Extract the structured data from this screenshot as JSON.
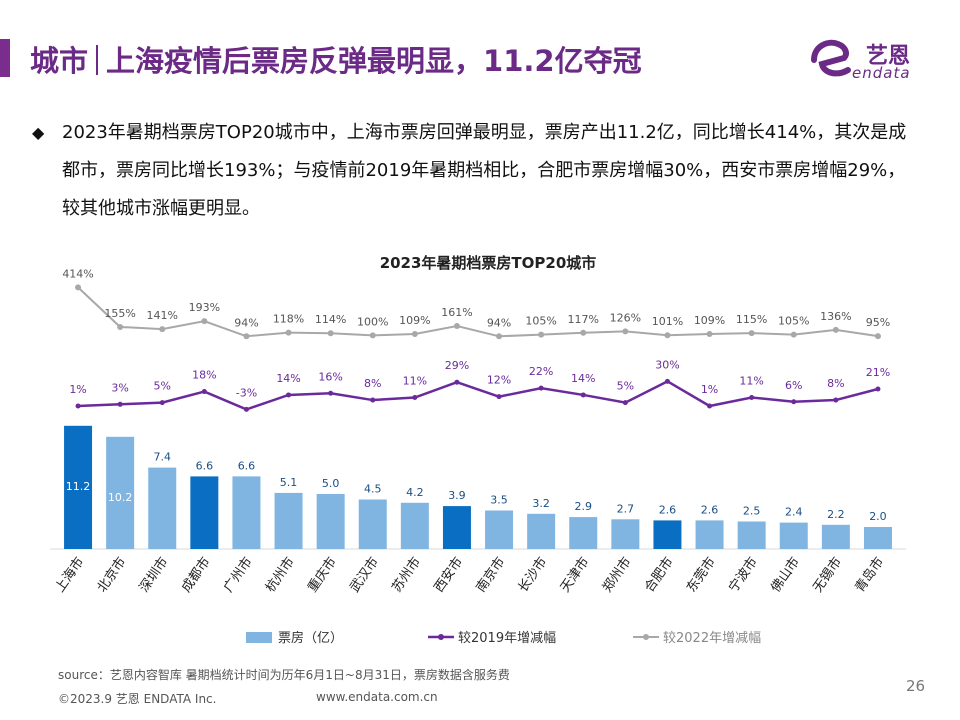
{
  "header": {
    "title_part1": "城市",
    "title_part2": "上海疫情后票房反弹最明显，11.2亿夺冠",
    "logo_cn": "艺恩",
    "logo_en": "endata"
  },
  "description": "2023年暑期档票房TOP20城市中，上海市票房回弹最明显，票房产出11.2亿，同比增长414%，其次是成都市，票房同比增长193%；与疫情前2019年暑期档相比，合肥市票房增幅30%，西安市票房增幅29%，较其他城市涨幅更明显。",
  "colors": {
    "bar_light": "#7fb5e0",
    "bar_highlight": "#0a6fc2",
    "line_2019": "#6a2a9c",
    "line_2022": "#a8a8a8",
    "title": "#6b2a86"
  },
  "chart_data": {
    "type": "bar",
    "title": "2023年暑期档票房TOP20城市",
    "categories": [
      "上海市",
      "北京市",
      "深圳市",
      "成都市",
      "广州市",
      "杭州市",
      "重庆市",
      "武汉市",
      "苏州市",
      "西安市",
      "南京市",
      "长沙市",
      "天津市",
      "郑州市",
      "合肥市",
      "东莞市",
      "宁波市",
      "佛山市",
      "无锡市",
      "青岛市"
    ],
    "highlighted": [
      "上海市",
      "成都市",
      "西安市",
      "合肥市"
    ],
    "series": [
      {
        "name": "票房（亿）",
        "kind": "bar",
        "values": [
          11.2,
          10.2,
          7.4,
          6.6,
          6.6,
          5.1,
          5.0,
          4.5,
          4.2,
          3.9,
          3.5,
          3.2,
          2.9,
          2.7,
          2.6,
          2.6,
          2.5,
          2.4,
          2.2,
          2.0
        ]
      },
      {
        "name": "较2019年增减幅",
        "kind": "line",
        "values": [
          1,
          3,
          5,
          18,
          -3,
          14,
          16,
          8,
          11,
          29,
          12,
          22,
          14,
          5,
          30,
          1,
          11,
          6,
          8,
          21
        ]
      },
      {
        "name": "较2022年增减幅",
        "kind": "line",
        "values": [
          414,
          155,
          141,
          193,
          94,
          118,
          114,
          100,
          109,
          161,
          94,
          105,
          117,
          126,
          101,
          109,
          115,
          105,
          136,
          95
        ]
      }
    ],
    "bar_ylim": [
      0,
      12
    ],
    "legend_position": "bottom"
  },
  "footer": {
    "source": "source：艺恩内容智库      暑期档统计时间为历年6月1日~8月31日，票房数据含服务费",
    "copyright": "©2023.9 艺恩 ENDATA Inc.",
    "website": "www.endata.com.cn",
    "page": "26"
  }
}
